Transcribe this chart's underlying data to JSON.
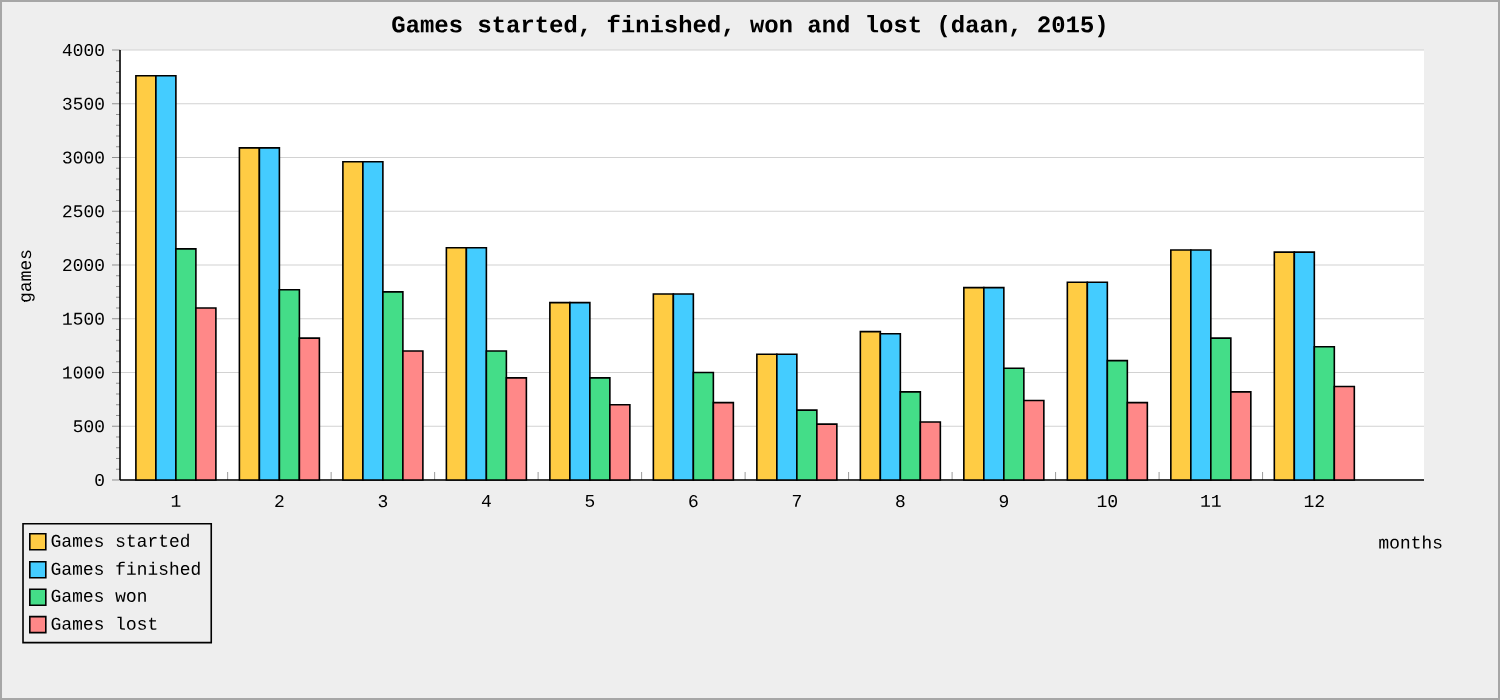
{
  "chart_data": {
    "type": "bar",
    "title": "Games started, finished, won and lost (daan, 2015)",
    "xlabel": "months",
    "ylabel": "games",
    "categories": [
      "1",
      "2",
      "3",
      "4",
      "5",
      "6",
      "7",
      "8",
      "9",
      "10",
      "11",
      "12"
    ],
    "series": [
      {
        "name": "Games started",
        "color": "#ffcc44",
        "values": [
          3760,
          3090,
          2960,
          2160,
          1650,
          1730,
          1170,
          1380,
          1790,
          1840,
          2140,
          2120
        ]
      },
      {
        "name": "Games finished",
        "color": "#44ccff",
        "values": [
          3760,
          3090,
          2960,
          2160,
          1650,
          1730,
          1170,
          1360,
          1790,
          1840,
          2140,
          2120
        ]
      },
      {
        "name": "Games won",
        "color": "#44dd88",
        "values": [
          2150,
          1770,
          1750,
          1200,
          950,
          1000,
          650,
          820,
          1040,
          1110,
          1320,
          1240
        ]
      },
      {
        "name": "Games lost",
        "color": "#ff8888",
        "values": [
          1600,
          1320,
          1200,
          950,
          700,
          720,
          520,
          540,
          740,
          720,
          820,
          870
        ]
      }
    ],
    "ylim": [
      0,
      4000
    ],
    "yticks": [
      0,
      500,
      1000,
      1500,
      2000,
      2500,
      3000,
      3500,
      4000
    ],
    "grid": "y",
    "legend": "bottom left"
  }
}
